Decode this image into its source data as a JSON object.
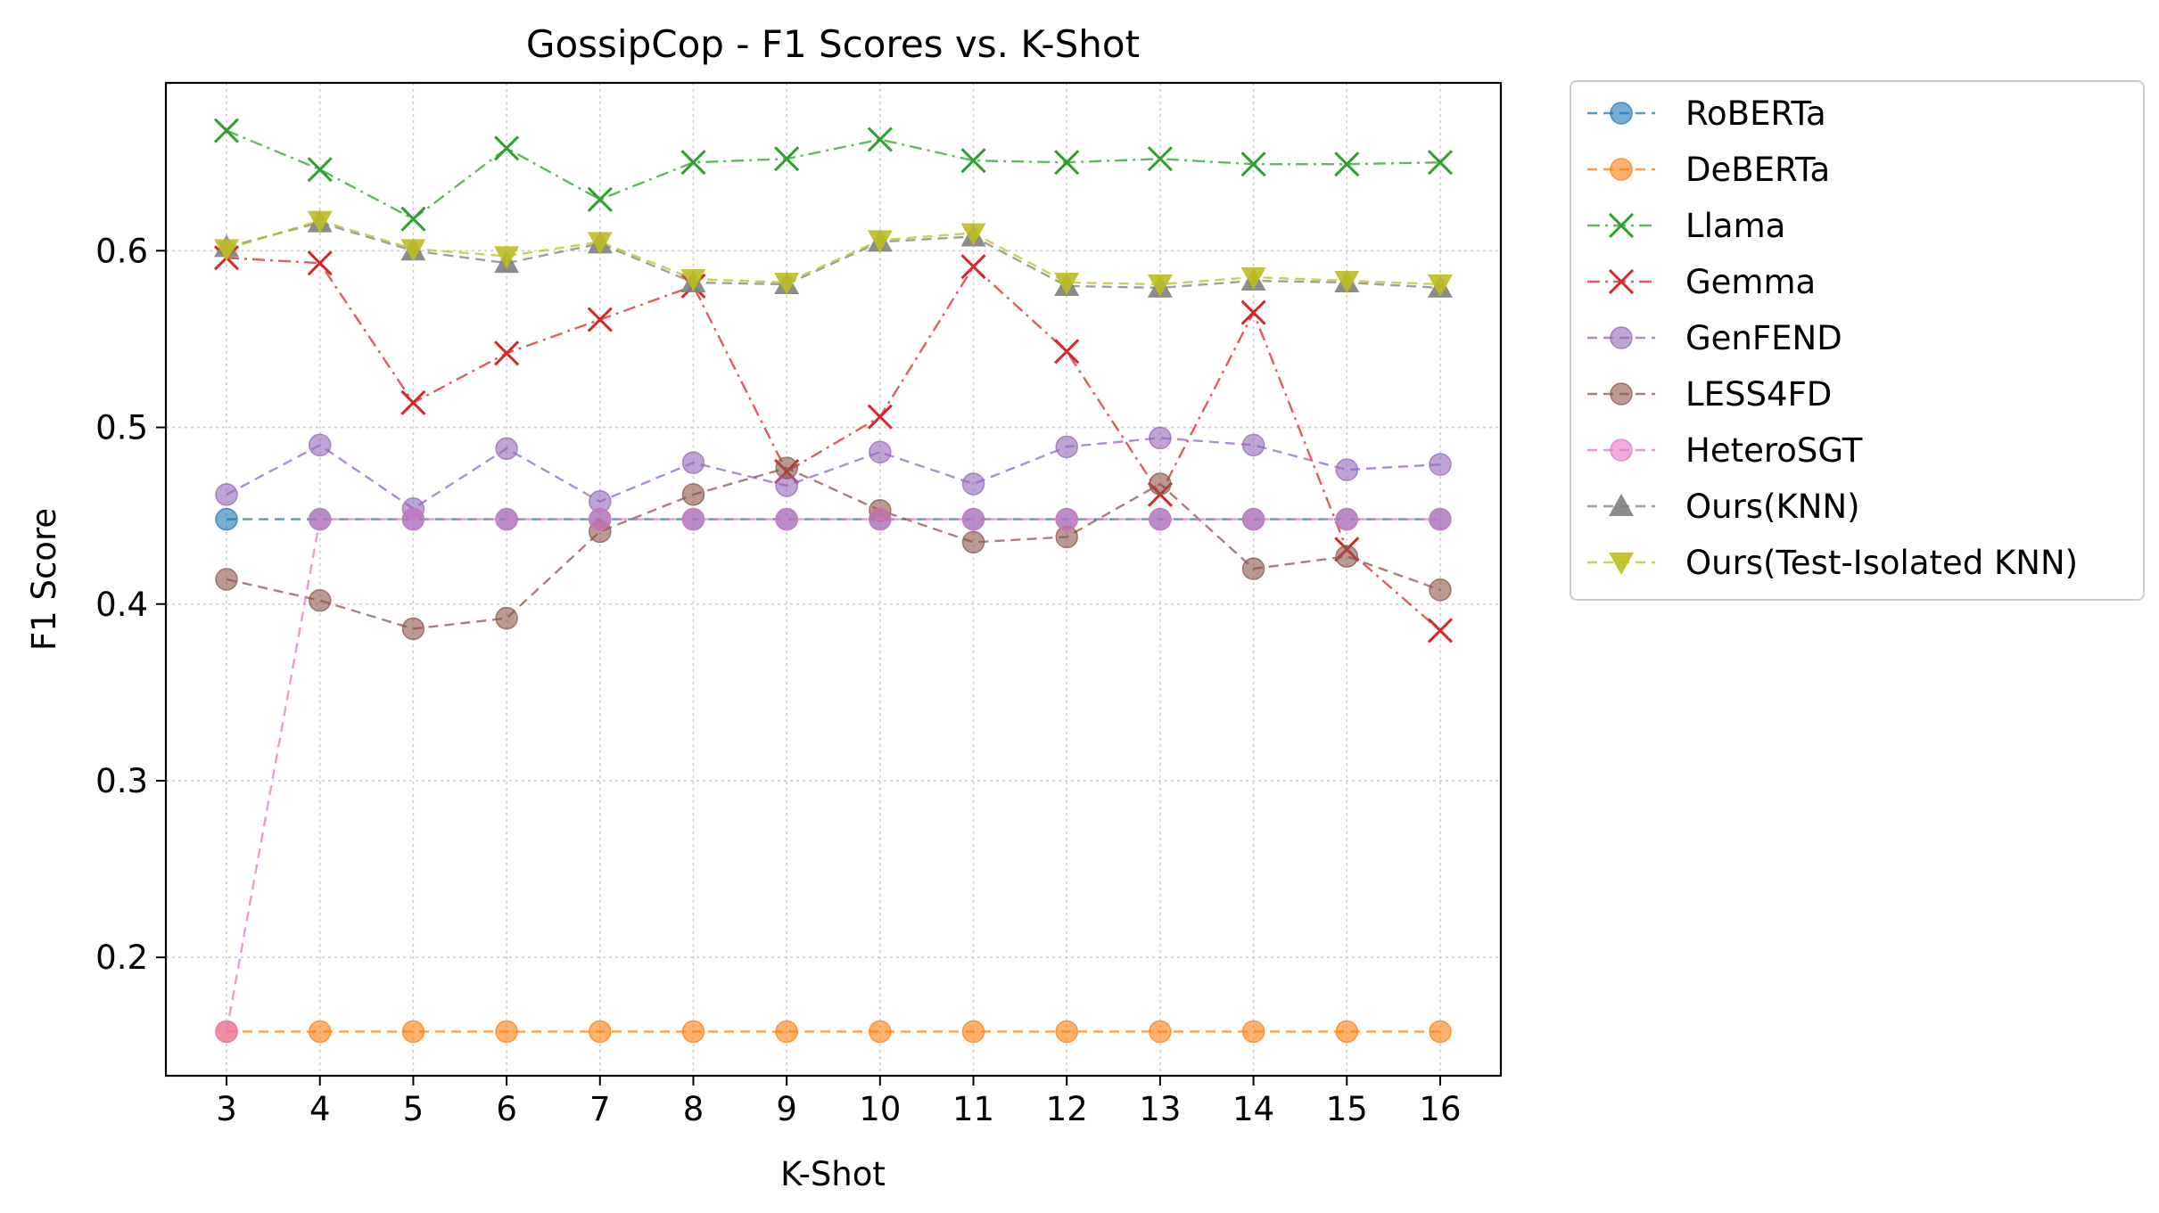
{
  "chart_data": {
    "type": "line",
    "title": "GossipCop - F1 Scores vs. K-Shot",
    "xlabel": "K-Shot",
    "ylabel": "F1 Score",
    "x": [
      3,
      4,
      5,
      6,
      7,
      8,
      9,
      10,
      11,
      12,
      13,
      14,
      15,
      16
    ],
    "xticks": [
      "3",
      "4",
      "5",
      "6",
      "7",
      "8",
      "9",
      "10",
      "11",
      "12",
      "13",
      "14",
      "15",
      "16"
    ],
    "yticks": [
      "0.2",
      "0.3",
      "0.4",
      "0.5",
      "0.6"
    ],
    "ylim": [
      0.133,
      0.695
    ],
    "xlim": [
      2.35,
      16.65
    ],
    "grid": true,
    "legend_position": "outside-right",
    "series": [
      {
        "name": "RoBERTa",
        "color": "#1f77b4",
        "marker": "circle",
        "linestyle": "dashed",
        "values": [
          0.448,
          0.448,
          0.448,
          0.448,
          0.448,
          0.448,
          0.448,
          0.448,
          0.448,
          0.448,
          0.448,
          0.448,
          0.448,
          0.448
        ]
      },
      {
        "name": "DeBERTa",
        "color": "#ff7f0e",
        "marker": "circle",
        "linestyle": "dashed",
        "values": [
          0.158,
          0.158,
          0.158,
          0.158,
          0.158,
          0.158,
          0.158,
          0.158,
          0.158,
          0.158,
          0.158,
          0.158,
          0.158,
          0.158
        ]
      },
      {
        "name": "Llama",
        "color": "#2ca02c",
        "marker": "x",
        "linestyle": "dashdot",
        "values": [
          0.668,
          0.646,
          0.618,
          0.658,
          0.629,
          0.65,
          0.652,
          0.663,
          0.651,
          0.65,
          0.652,
          0.649,
          0.649,
          0.65
        ]
      },
      {
        "name": "Gemma",
        "color": "#d62728",
        "marker": "x",
        "linestyle": "dashdot",
        "values": [
          0.596,
          0.593,
          0.514,
          0.542,
          0.561,
          0.58,
          0.475,
          0.506,
          0.591,
          0.543,
          0.462,
          0.565,
          0.431,
          0.385
        ]
      },
      {
        "name": "GenFEND",
        "color": "#9467bd",
        "marker": "circle",
        "linestyle": "dashed",
        "values": [
          0.462,
          0.49,
          0.454,
          0.488,
          0.458,
          0.48,
          0.467,
          0.486,
          0.468,
          0.489,
          0.494,
          0.49,
          0.476,
          0.479
        ]
      },
      {
        "name": "LESS4FD",
        "color": "#8c564b",
        "marker": "circle",
        "linestyle": "dashed",
        "values": [
          0.414,
          0.402,
          0.386,
          0.392,
          0.441,
          0.462,
          0.477,
          0.453,
          0.435,
          0.438,
          0.468,
          0.42,
          0.427,
          0.408
        ]
      },
      {
        "name": "HeteroSGT",
        "color": "#e377c2",
        "marker": "circle",
        "linestyle": "dashed",
        "values": [
          0.158,
          0.448,
          0.448,
          0.448,
          0.448,
          0.448,
          0.448,
          0.448,
          0.448,
          0.448,
          0.448,
          0.448,
          0.448,
          0.448
        ]
      },
      {
        "name": "Ours(KNN)",
        "color": "#7f7f7f",
        "marker": "triangle-up",
        "linestyle": "dashed",
        "values": [
          0.602,
          0.616,
          0.6,
          0.593,
          0.604,
          0.582,
          0.581,
          0.605,
          0.608,
          0.58,
          0.579,
          0.583,
          0.582,
          0.579
        ]
      },
      {
        "name": "Ours(Test-Isolated KNN)",
        "color": "#bcbd22",
        "marker": "triangle-down",
        "linestyle": "dashed",
        "values": [
          0.601,
          0.617,
          0.601,
          0.597,
          0.605,
          0.584,
          0.582,
          0.606,
          0.61,
          0.582,
          0.581,
          0.585,
          0.583,
          0.581
        ]
      }
    ]
  }
}
